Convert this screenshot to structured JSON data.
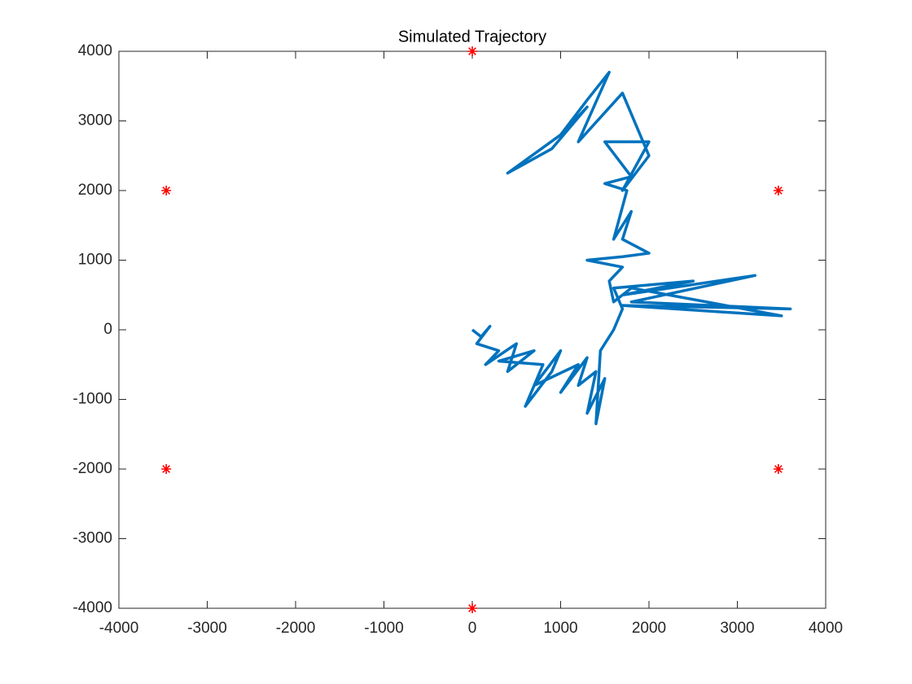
{
  "chart_data": {
    "type": "line",
    "title": "Simulated Trajectory",
    "xlim": [
      -4000,
      4000
    ],
    "ylim": [
      -4000,
      4000
    ],
    "xticks": [
      -4000,
      -3000,
      -2000,
      -1000,
      0,
      1000,
      2000,
      3000,
      4000
    ],
    "yticks": [
      -4000,
      -3000,
      -2000,
      -1000,
      0,
      1000,
      2000,
      3000,
      4000
    ],
    "grid": false,
    "series": [
      {
        "type": "line",
        "color": "#0072bd",
        "x": [
          0,
          100,
          200,
          50,
          300,
          150,
          500,
          400,
          700,
          300,
          800,
          600,
          900,
          1000,
          700,
          1200,
          1000,
          1300,
          1200,
          1400,
          1300,
          1500,
          1400,
          1450,
          1600,
          1700,
          1600,
          2500,
          1700,
          3200,
          1800,
          3600,
          1700,
          3500,
          1800,
          1600,
          1550,
          1700,
          1300,
          1700,
          2000,
          1700,
          1800,
          1600,
          1750,
          1500,
          1800,
          1500,
          2000,
          1700,
          2000,
          1700,
          1200,
          1550,
          1300,
          1000,
          1300,
          900,
          400,
          1000
        ],
        "y": [
          0,
          -100,
          50,
          -200,
          -300,
          -500,
          -200,
          -600,
          -300,
          -450,
          -500,
          -1100,
          -600,
          -300,
          -800,
          -500,
          -900,
          -400,
          -800,
          -600,
          -1200,
          -700,
          -1350,
          -300,
          0,
          300,
          600,
          700,
          500,
          780,
          400,
          300,
          350,
          200,
          600,
          400,
          700,
          900,
          1000,
          1050,
          1100,
          1300,
          1700,
          1300,
          2000,
          2100,
          2200,
          2700,
          2700,
          2000,
          2500,
          3400,
          2700,
          3700,
          3300,
          2800,
          3200,
          2600,
          2250,
          2800
        ]
      },
      {
        "type": "scatter",
        "color": "#ff0000",
        "x": [
          0,
          -3464,
          3464,
          -3464,
          3464,
          0
        ],
        "y": [
          4000,
          2000,
          2000,
          -2000,
          -2000,
          -4000
        ]
      }
    ]
  }
}
